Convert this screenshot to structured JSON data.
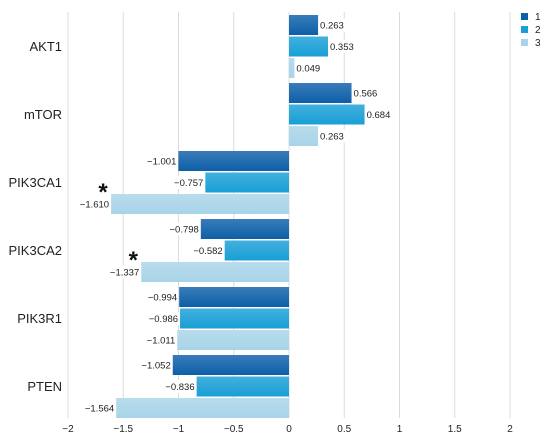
{
  "chart_data": {
    "type": "bar",
    "orientation": "horizontal",
    "categories": [
      "AKT1",
      "mTOR",
      "PIK3CA1",
      "PIK3CA2",
      "PIK3R1",
      "PTEN"
    ],
    "series": [
      {
        "name": "1",
        "color": "#0d5fa8",
        "values": [
          0.263,
          0.566,
          -1.001,
          -0.798,
          -0.994,
          -1.052
        ],
        "labels": [
          "0.263",
          "0.566",
          "−1.001",
          "−0.798",
          "−0.994",
          "−1.052"
        ]
      },
      {
        "name": "2",
        "color": "#189fd6",
        "values": [
          0.353,
          0.684,
          -0.757,
          -0.582,
          -0.986,
          -0.836
        ],
        "labels": [
          "0.353",
          "0.684",
          "−0.757",
          "−0.582",
          "−0.986",
          "−0.836"
        ]
      },
      {
        "name": "3",
        "color": "#a8d4e8",
        "values": [
          0.049,
          0.263,
          -1.61,
          -1.337,
          -1.011,
          -1.564
        ],
        "labels": [
          "0.049",
          "0.263",
          "−1.610",
          "−1.337",
          "−1.011",
          "−1.564"
        ]
      }
    ],
    "xlim": [
      -2,
      2
    ],
    "xticks": [
      -2,
      -1.5,
      -1,
      -0.5,
      0,
      0.5,
      1,
      1.5,
      2
    ],
    "xtick_labels": [
      "−2",
      "−1.5",
      "−1",
      "−0.5",
      "0",
      "0.5",
      "1",
      "1.5",
      "2"
    ],
    "grid": "vertical",
    "legend": "top-right",
    "annotations": [
      {
        "text": "*",
        "category": "PIK3CA1",
        "series": "3"
      },
      {
        "text": "*",
        "category": "PIK3CA2",
        "series": "3"
      }
    ]
  }
}
